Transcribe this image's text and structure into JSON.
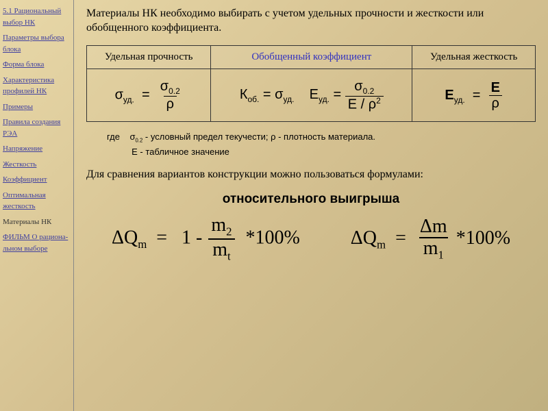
{
  "sidebar": {
    "items": [
      {
        "label": "5.1 Рациональный выбор НК",
        "link": true
      },
      {
        "label": "Параметры выбора блока",
        "link": true
      },
      {
        "label": "Форма блока",
        "link": true
      },
      {
        "label": "Характеристика профилей НК",
        "link": true
      },
      {
        "label": "Примеры",
        "link": true
      },
      {
        "label": "Правила создания РЭА",
        "link": true
      },
      {
        "label": "Напряжение",
        "link": true
      },
      {
        "label": "Жесткость",
        "link": true
      },
      {
        "label": "Коэффициент",
        "link": true
      },
      {
        "label": "Оптимальная жесткость",
        "link": true
      },
      {
        "label": "Материалы НК",
        "link": false
      },
      {
        "label": "ФИЛЬМ О рациона-льном выборе",
        "link": true
      }
    ]
  },
  "intro": "Материалы НК необходимо выбирать с учетом удельных прочности и жесткости или обобщенного коэффициента.",
  "table": {
    "headers": [
      "Удельная прочность",
      "Обобщенный коэффициент",
      "Удельная жесткость"
    ]
  },
  "formulas": {
    "sigma_ud": {
      "lhs_sym": "σ",
      "lhs_sub": "уд.",
      "num_sym": "σ",
      "num_sub": "0.2",
      "den": "ρ"
    },
    "k_ob": {
      "lhs": "К",
      "lhs_sub": "об.",
      "rhs1": "σ",
      "rhs1_sub": "уд.",
      "rhs2": "Е",
      "rhs2_sub": "уд."
    },
    "e_ud_mid": {
      "lhs": "Е",
      "lhs_sub": "уд.",
      "num_sym": "σ",
      "num_sub": "0.2",
      "den_a": "E / ρ",
      "den_exp": "2"
    },
    "e_ud": {
      "lhs": "Е",
      "lhs_sub": "уд.",
      "num": "E",
      "den": "ρ"
    }
  },
  "legend": {
    "where": "где",
    "line1a": "σ",
    "line1a_sub": "0.2",
    "line1b": " - условный предел текучести;  ρ - плотность материала.",
    "line2": "Е -   табличное значение"
  },
  "compare": "Для сравнения вариантов конструкции можно пользоваться формулами:",
  "gain_title": "относительного выигрыша",
  "big": {
    "dq": "ΔQ",
    "dq_sub": "m",
    "one": "1",
    "minus": "-",
    "m2": "m",
    "m2_sub": "2",
    "mt": "m",
    "mt_sub": "t",
    "pct": "*100%",
    "dm": "Δm",
    "m1": "m",
    "m1_sub": "1"
  },
  "colors": {
    "link": "#4040a0",
    "header_mid": "#3030c0",
    "border": "#333333"
  }
}
